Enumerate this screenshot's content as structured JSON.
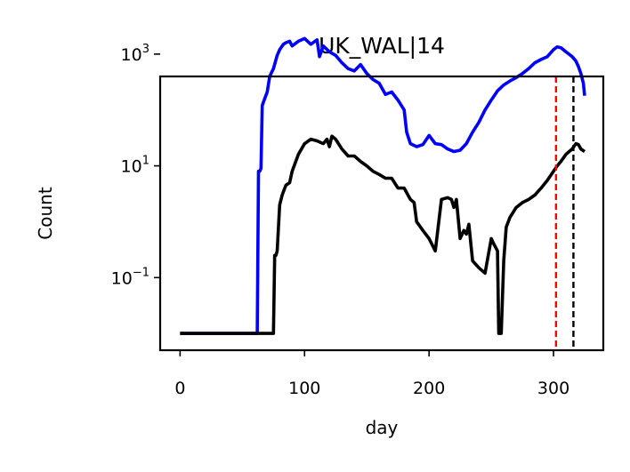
{
  "chart_data": {
    "type": "line",
    "title": "UK_WAL|14",
    "xlabel": "day",
    "ylabel": "Count",
    "xlim": [
      -16,
      340
    ],
    "ylim_log10": [
      -2.3,
      2.6
    ],
    "yscale": "log",
    "grid": false,
    "xticks": [
      0,
      100,
      200,
      300
    ],
    "xtick_labels": [
      "0",
      "100",
      "200",
      "300"
    ],
    "yticks_exp": [
      -1,
      1,
      3
    ],
    "ytick_base": "10",
    "ytick_exps": [
      "−1",
      "1",
      "3"
    ],
    "series": [
      {
        "color": "#0000ff",
        "x": [
          0,
          62,
          63,
          64,
          65,
          66,
          68,
          70,
          72,
          75,
          78,
          80,
          83,
          85,
          88,
          90,
          95,
          100,
          105,
          110,
          112,
          115,
          120,
          125,
          130,
          135,
          140,
          145,
          150,
          155,
          160,
          165,
          170,
          175,
          180,
          182,
          185,
          190,
          195,
          200,
          205,
          210,
          215,
          220,
          225,
          230,
          235,
          240,
          245,
          250,
          255,
          260,
          265,
          270,
          275,
          280,
          285,
          290,
          295,
          300,
          303,
          306,
          310,
          315,
          318,
          320,
          322,
          324,
          325
        ],
        "y": [
          0.01,
          0.01,
          8,
          8,
          9,
          120,
          160,
          210,
          400,
          550,
          950,
          1200,
          1500,
          1600,
          1700,
          1400,
          1700,
          1900,
          1500,
          1800,
          900,
          1400,
          1100,
          950,
          700,
          550,
          500,
          650,
          450,
          350,
          300,
          190,
          210,
          150,
          100,
          40,
          25,
          22,
          24,
          35,
          25,
          24,
          20,
          18,
          19,
          25,
          40,
          60,
          100,
          150,
          220,
          280,
          330,
          380,
          450,
          550,
          700,
          800,
          900,
          1200,
          1350,
          1300,
          1100,
          900,
          750,
          600,
          450,
          300,
          180
        ]
      },
      {
        "color": "#000000",
        "x": [
          0,
          75,
          76,
          77,
          78,
          80,
          82,
          85,
          88,
          90,
          95,
          100,
          105,
          110,
          115,
          118,
          120,
          122,
          125,
          130,
          135,
          140,
          145,
          150,
          155,
          160,
          165,
          170,
          175,
          180,
          185,
          188,
          190,
          195,
          200,
          205,
          210,
          215,
          218,
          220,
          222,
          225,
          228,
          230,
          232,
          235,
          240,
          245,
          250,
          252,
          255,
          256,
          258,
          260,
          262,
          265,
          270,
          275,
          280,
          285,
          290,
          295,
          300,
          303,
          306,
          310,
          315,
          318,
          320,
          322,
          325
        ],
        "y": [
          0.01,
          0.01,
          0.25,
          0.25,
          0.3,
          2,
          3,
          4.5,
          5,
          8,
          16,
          25,
          30,
          28,
          25,
          30,
          22,
          34,
          30,
          20,
          15,
          15,
          12,
          10,
          8,
          7,
          6,
          6,
          4,
          4,
          2.5,
          2.2,
          1,
          0.7,
          0.5,
          0.3,
          2.5,
          2.7,
          2.5,
          1.8,
          2.5,
          0.5,
          0.7,
          0.6,
          0.9,
          0.2,
          0.15,
          0.12,
          0.5,
          0.4,
          0.3,
          0.01,
          0.01,
          0.2,
          0.8,
          1.2,
          1.8,
          2.2,
          2.5,
          3,
          4,
          5.5,
          8,
          10,
          12,
          16,
          20,
          25,
          24,
          20,
          18
        ]
      }
    ],
    "vlines": [
      {
        "x": 302,
        "color": "#ff0000",
        "style": "dashed"
      },
      {
        "x": 316,
        "color": "#000000",
        "style": "dashed"
      }
    ]
  }
}
